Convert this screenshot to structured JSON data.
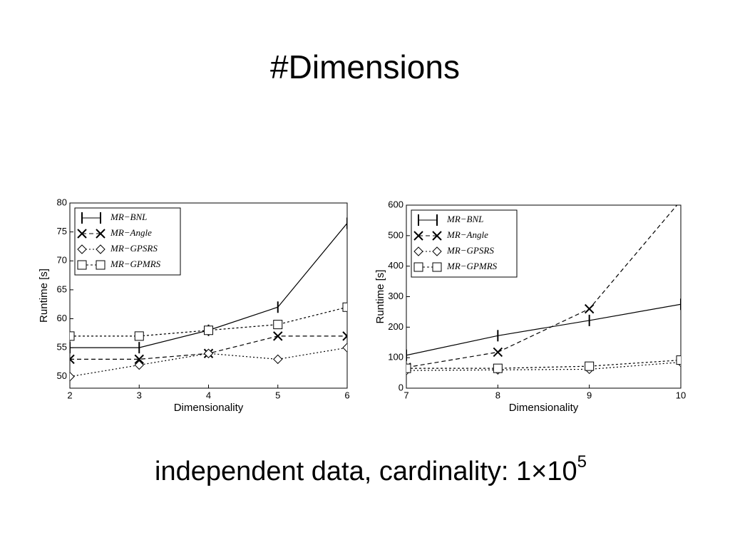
{
  "slide": {
    "title": "#Dimensions",
    "caption": {
      "text": "independent data, cardinality: 1×10",
      "superscript": "5"
    }
  },
  "chart_data": [
    {
      "type": "line",
      "xlabel": "Dimensionality",
      "ylabel": "Runtime [s]",
      "x": [
        2,
        3,
        4,
        5,
        6
      ],
      "xlim": [
        2,
        6
      ],
      "xticks": [
        2,
        3,
        4,
        5,
        6
      ],
      "ylim": [
        48,
        80
      ],
      "yticks": [
        50,
        55,
        60,
        65,
        70,
        75,
        80
      ],
      "legend": "upper left",
      "series": [
        {
          "name": "MR−BNL",
          "color": "#000000",
          "marker": "vline",
          "linestyle": "solid",
          "values": [
            55,
            55,
            58,
            62,
            76.5
          ]
        },
        {
          "name": "MR−Angle",
          "color": "#000000",
          "marker": "x",
          "linestyle": "dashed",
          "values": [
            53,
            53,
            54,
            57,
            57
          ]
        },
        {
          "name": "MR−GPSRS",
          "color": "#000000",
          "marker": "diamond",
          "linestyle": "dotted",
          "values": [
            50,
            52,
            54,
            53,
            55
          ]
        },
        {
          "name": "MR−GPMRS",
          "color": "#000000",
          "marker": "square",
          "linestyle": "dashdot",
          "values": [
            57,
            57,
            58,
            59,
            62
          ]
        }
      ]
    },
    {
      "type": "line",
      "xlabel": "Dimensionality",
      "ylabel": "Runtime [s]",
      "x": [
        7,
        8,
        9,
        10
      ],
      "xlim": [
        7,
        10
      ],
      "xticks": [
        7,
        8,
        9,
        10
      ],
      "ylim": [
        0,
        600
      ],
      "yticks": [
        0,
        100,
        200,
        300,
        400,
        500,
        600
      ],
      "legend": "upper left",
      "series": [
        {
          "name": "MR−BNL",
          "color": "#000000",
          "marker": "vline",
          "linestyle": "solid",
          "values": [
            108,
            172,
            222,
            275
          ]
        },
        {
          "name": "MR−Angle",
          "color": "#000000",
          "marker": "x",
          "linestyle": "dashed",
          "values": [
            68,
            118,
            260,
            615
          ]
        },
        {
          "name": "MR−GPSRS",
          "color": "#000000",
          "marker": "diamond",
          "linestyle": "dotted",
          "values": [
            58,
            60,
            62,
            85
          ]
        },
        {
          "name": "MR−GPMRS",
          "color": "#000000",
          "marker": "square",
          "linestyle": "dashdot",
          "values": [
            65,
            65,
            72,
            92
          ]
        }
      ]
    }
  ]
}
